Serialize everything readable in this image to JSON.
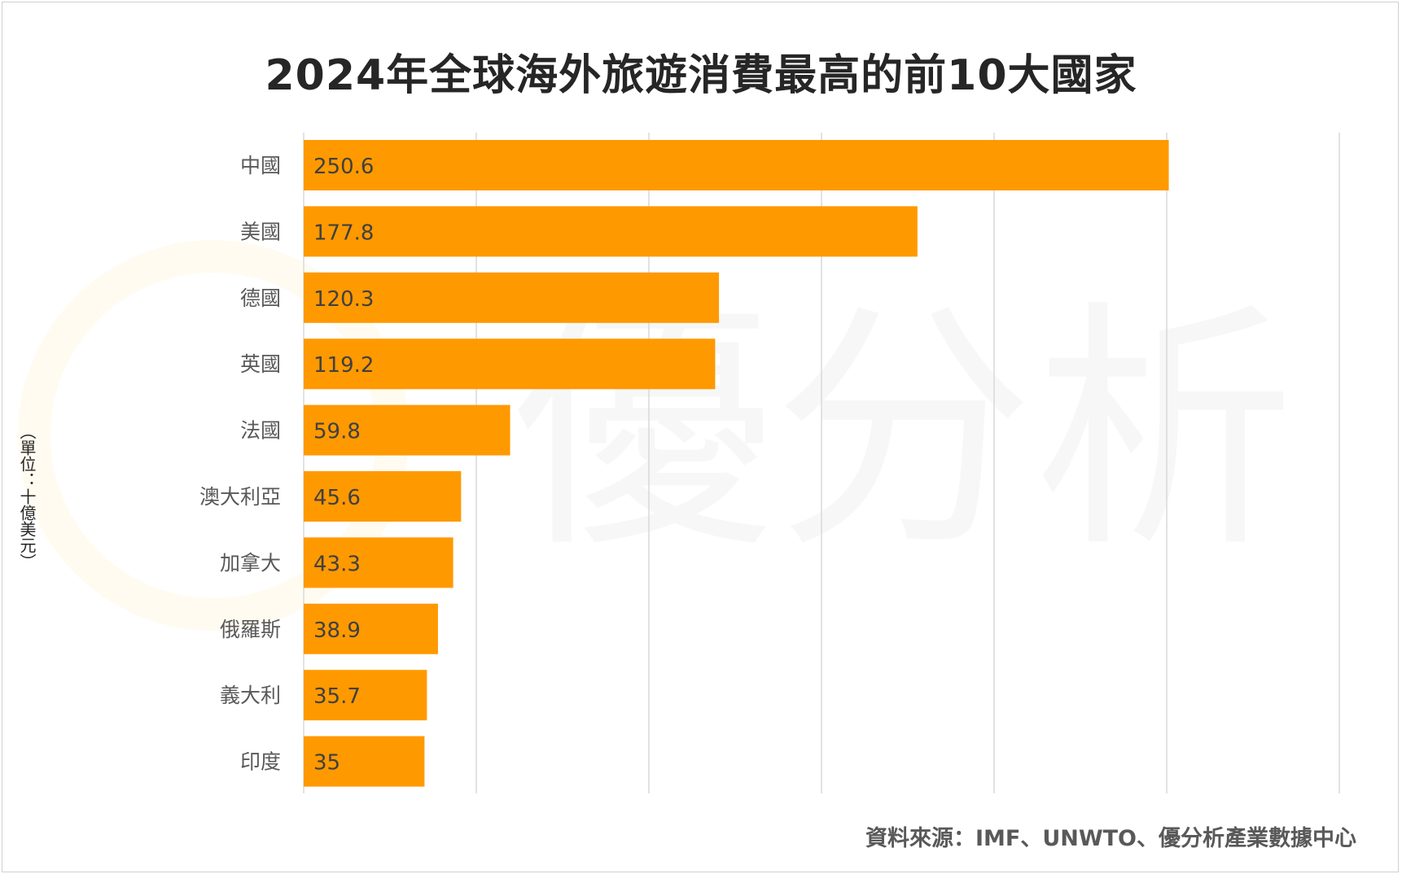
{
  "chart_data": {
    "type": "bar",
    "orientation": "horizontal",
    "title": "2024年全球海外旅遊消費最高的前10大國家",
    "ylabel": "（單位：十億美元）",
    "source": "資料來源：IMF、UNWTO、優分析產業數據中心",
    "watermark": "優分析",
    "categories": [
      "中國",
      "美國",
      "德國",
      "英國",
      "法國",
      "澳大利亞",
      "加拿大",
      "俄羅斯",
      "義大利",
      "印度"
    ],
    "values": [
      250.6,
      177.8,
      120.3,
      119.2,
      59.8,
      45.6,
      43.3,
      38.9,
      35.7,
      35
    ],
    "value_labels": [
      "250.6",
      "177.8",
      "120.3",
      "119.2",
      "59.8",
      "45.6",
      "43.3",
      "38.9",
      "35.7",
      "35"
    ],
    "xlim": [
      0,
      300
    ],
    "grid": true,
    "bar_color": "#FF9900",
    "grid_color": "#D9D9D9"
  }
}
